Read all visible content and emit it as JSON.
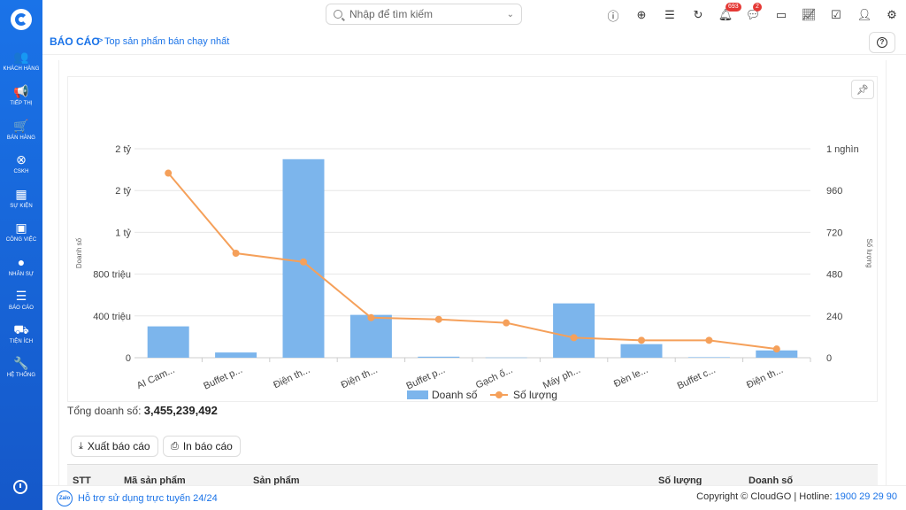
{
  "sidebar": {
    "items": [
      {
        "label": "KHÁCH HÀNG",
        "icon": "users-icon",
        "glyph": "👥"
      },
      {
        "label": "TIẾP THỊ",
        "icon": "megaphone-icon",
        "glyph": "📢"
      },
      {
        "label": "BÁN HÀNG",
        "icon": "cart-icon",
        "glyph": "🛒"
      },
      {
        "label": "CSKH",
        "icon": "support-icon",
        "glyph": "⊗"
      },
      {
        "label": "SỰ KIỆN",
        "icon": "calendar-icon",
        "glyph": "▦"
      },
      {
        "label": "CÔNG VIỆC",
        "icon": "briefcase-icon",
        "glyph": "▣"
      },
      {
        "label": "NHÂN SỰ",
        "icon": "person-icon",
        "glyph": "●"
      },
      {
        "label": "BÁO CÁO",
        "icon": "report-icon",
        "glyph": "☰"
      },
      {
        "label": "TIỆN ÍCH",
        "icon": "cars-icon",
        "glyph": "⛟"
      },
      {
        "label": "HỆ THỐNG",
        "icon": "wrench-icon",
        "glyph": "🔧"
      }
    ]
  },
  "search": {
    "placeholder": "Nhập để tìm kiếm"
  },
  "notifications": {
    "bell_count": "693",
    "chat_count": "2"
  },
  "breadcrumb": {
    "main": "BÁO CÁO",
    "separator": ">",
    "sub": "Top sản phẩm bán chạy nhất"
  },
  "chart_data": {
    "type": "bar",
    "categories": [
      "AI Cam...",
      "Buffet p...",
      "Điện th...",
      "Điện th...",
      "Buffet p...",
      "Gạch ố...",
      "Máy ph...",
      "Đèn le...",
      "Buffet c...",
      "Điện th..."
    ],
    "series": [
      {
        "name": "Doanh số",
        "type": "bar",
        "axis": "left",
        "color": "#7cb5ec",
        "values": [
          300000000,
          50000000,
          1900000000,
          410000000,
          10000000,
          2000000,
          520000000,
          130000000,
          5000000,
          70000000
        ]
      },
      {
        "name": "Số lượng",
        "type": "line",
        "axis": "right",
        "color": "#f5a05a",
        "values": [
          1060,
          600,
          550,
          230,
          220,
          200,
          115,
          100,
          100,
          50
        ]
      }
    ],
    "ylabel": "Doanh số",
    "ylabel_right": "Số lượng",
    "y_ticks": [
      {
        "value": 0,
        "label": "0"
      },
      {
        "value": 400000000,
        "label": "400 triệu"
      },
      {
        "value": 800000000,
        "label": "800 triệu"
      },
      {
        "value": 1200000000,
        "label": "1 tỷ"
      },
      {
        "value": 1600000000,
        "label": "2 tỷ"
      },
      {
        "value": 2000000000,
        "label": "2 tỷ"
      }
    ],
    "y2_ticks": [
      {
        "value": 0,
        "label": "0"
      },
      {
        "value": 240,
        "label": "240"
      },
      {
        "value": 480,
        "label": "480"
      },
      {
        "value": 720,
        "label": "720"
      },
      {
        "value": 960,
        "label": "960"
      },
      {
        "value": 1200,
        "label": "1 nghìn"
      }
    ],
    "ylim": [
      0,
      2000000000
    ],
    "y2lim": [
      0,
      1200
    ],
    "legend_position": "bottom",
    "grid": true
  },
  "summary": {
    "label": "Tổng doanh số:",
    "value": "3,455,239,492"
  },
  "actions": {
    "export_label": "Xuất báo cáo",
    "print_label": "In báo cáo"
  },
  "table": {
    "headers": [
      "STT",
      "Mã sản phẩm",
      "Sản phẩm",
      "Số lượng",
      "Doanh số"
    ]
  },
  "footer": {
    "support": "Hỗ trợ sử dụng trực tuyến 24/24",
    "copyright": "Copyright © CloudGO",
    "hotline_label": "Hotline:",
    "hotline": "1900 29 29 90",
    "zalo": "Zalo"
  }
}
